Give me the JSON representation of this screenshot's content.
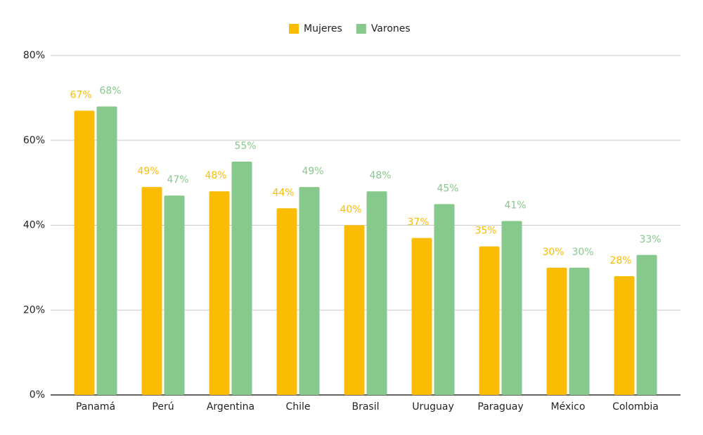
{
  "chart_data": {
    "type": "bar",
    "categories": [
      "Panamá",
      "Perú",
      "Argentina",
      "Chile",
      "Brasil",
      "Uruguay",
      "Paraguay",
      "México",
      "Colombia"
    ],
    "series": [
      {
        "name": "Mujeres",
        "color": "#fbbc04",
        "values": [
          67,
          49,
          48,
          44,
          40,
          37,
          35,
          30,
          28
        ],
        "value_labels": [
          "67%",
          "49%",
          "48%",
          "44%",
          "40%",
          "37%",
          "35%",
          "30%",
          "28%"
        ]
      },
      {
        "name": "Varones",
        "color": "#87c98c",
        "values": [
          68,
          47,
          55,
          49,
          48,
          45,
          41,
          30,
          33
        ],
        "value_labels": [
          "68%",
          "47%",
          "55%",
          "49%",
          "48%",
          "45%",
          "41%",
          "30%",
          "33%"
        ]
      }
    ],
    "ylim": [
      0,
      80
    ],
    "yticks": [
      {
        "value": 0,
        "label": "0%"
      },
      {
        "value": 20,
        "label": "20%"
      },
      {
        "value": 40,
        "label": "40%"
      },
      {
        "value": 60,
        "label": "60%"
      },
      {
        "value": 80,
        "label": "80%"
      }
    ],
    "grid": true,
    "legend": "top"
  }
}
